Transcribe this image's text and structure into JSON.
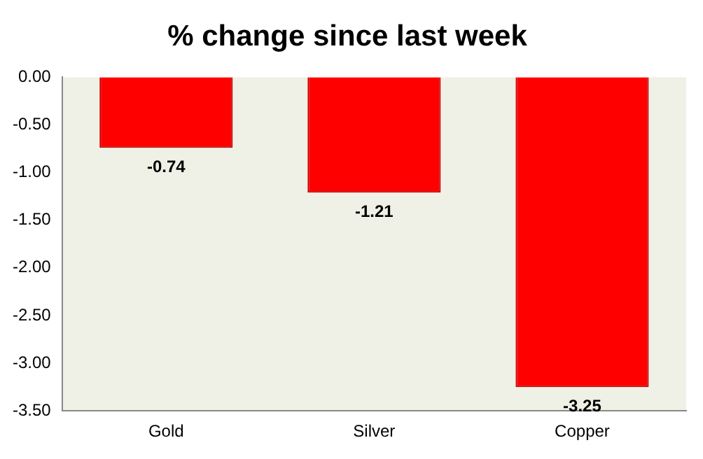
{
  "chart_data": {
    "type": "bar",
    "title": "% change since last week",
    "categories": [
      "Gold",
      "Silver",
      "Copper"
    ],
    "values": [
      -0.74,
      -1.21,
      -3.25
    ],
    "color": "#ff0000",
    "ylim": [
      -3.5,
      0
    ],
    "yticks": [
      {
        "value": 0,
        "label": "0.00"
      },
      {
        "value": -0.5,
        "label": "-0.50"
      },
      {
        "value": -1,
        "label": "-1.00"
      },
      {
        "value": -1.5,
        "label": "-1.50"
      },
      {
        "value": -2,
        "label": "-2.00"
      },
      {
        "value": -2.5,
        "label": "-2.50"
      },
      {
        "value": -3,
        "label": "-3.00"
      },
      {
        "value": -3.5,
        "label": "-3.50"
      }
    ],
    "grid": false,
    "legend": false,
    "data_labels": true
  }
}
